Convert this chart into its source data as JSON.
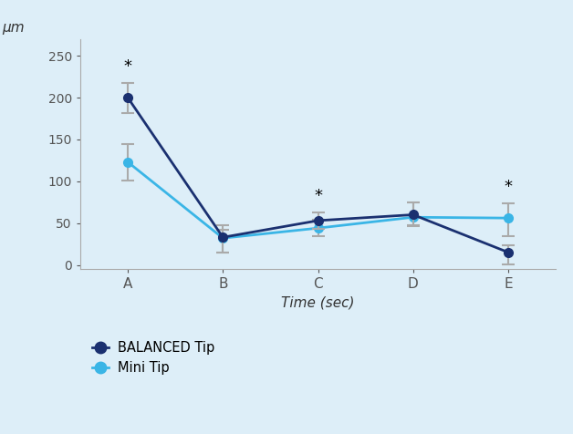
{
  "x_labels": [
    "A",
    "B",
    "C",
    "D",
    "E"
  ],
  "x_positions": [
    0,
    1,
    2,
    3,
    4
  ],
  "balanced_y": [
    200,
    33,
    53,
    60,
    15
  ],
  "balanced_yerr_upper": [
    18,
    14,
    10,
    15,
    8
  ],
  "balanced_yerr_lower": [
    18,
    18,
    10,
    14,
    14
  ],
  "mini_y": [
    123,
    32,
    44,
    57,
    56
  ],
  "mini_yerr_upper": [
    22,
    10,
    10,
    18,
    18
  ],
  "mini_yerr_lower": [
    22,
    17,
    10,
    10,
    22
  ],
  "balanced_color": "#1a3070",
  "mini_color": "#3ab5e6",
  "errorbar_color": "#aaaaaa",
  "background_color": "#ddeef8",
  "ylabel": "μm",
  "xlabel": "Time (sec)",
  "ylim": [
    -5,
    270
  ],
  "yticks": [
    0,
    50,
    100,
    150,
    200,
    250
  ],
  "legend_labels": [
    "BALANCED Tip",
    "Mini Tip"
  ],
  "balanced_star_indices": [
    0,
    2
  ],
  "mini_star_indices": [
    4
  ],
  "title": ""
}
